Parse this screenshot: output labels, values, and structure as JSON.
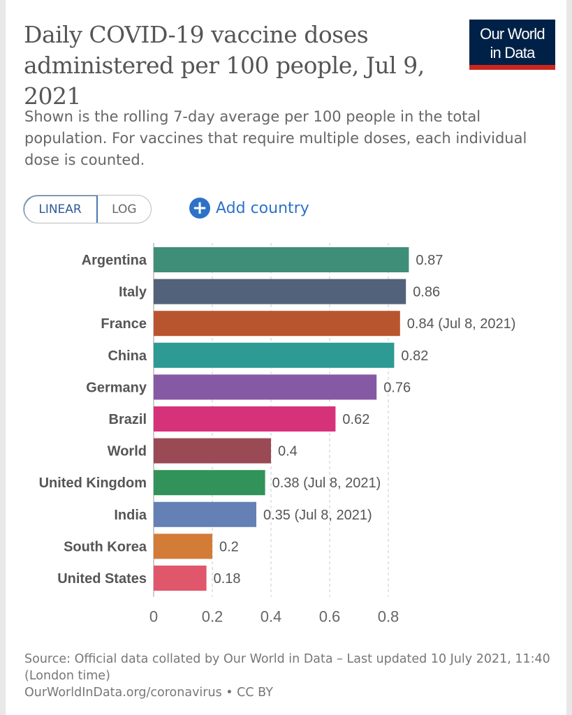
{
  "header": {
    "title": "Daily COVID-19 vaccine doses administered per 100 people, Jul 9, 2021",
    "subtitle": "Shown is the rolling 7-day average per 100 people in the total population. For vaccines that require multiple doses, each individual dose is counted."
  },
  "logo": {
    "line1": "Our World",
    "line2": "in Data"
  },
  "controls": {
    "linear_label": "LINEAR",
    "log_label": "LOG",
    "add_country_label": "Add country",
    "selected_scale": "linear"
  },
  "footer": {
    "source": "Source: Official data collated by Our World in Data – Last updated 10 July 2021, 11:40 (London time)",
    "link": "OurWorldInData.org/coronavirus • CC BY"
  },
  "chart_data": {
    "type": "bar",
    "orientation": "horizontal",
    "categories": [
      "Argentina",
      "Italy",
      "France",
      "China",
      "Germany",
      "Brazil",
      "World",
      "United Kingdom",
      "India",
      "South Korea",
      "United States"
    ],
    "values": [
      0.87,
      0.86,
      0.84,
      0.82,
      0.76,
      0.62,
      0.4,
      0.38,
      0.35,
      0.2,
      0.18
    ],
    "value_labels": [
      "0.87",
      "0.86",
      "0.84 (Jul 8, 2021)",
      "0.82",
      "0.76",
      "0.62",
      "0.4",
      "0.38 (Jul 8, 2021)",
      "0.35 (Jul 8, 2021)",
      "0.2",
      "0.18"
    ],
    "colors": [
      "#3f8e78",
      "#52627a",
      "#b9552e",
      "#2d9a94",
      "#8659a5",
      "#d6327a",
      "#9a4a54",
      "#31925a",
      "#6480b5",
      "#d37c38",
      "#e0566b"
    ],
    "xlim": [
      0,
      0.87
    ],
    "xticks": [
      0,
      0.2,
      0.4,
      0.6,
      0.8
    ],
    "xtick_labels": [
      "0",
      "0.2",
      "0.4",
      "0.6",
      "0.8"
    ],
    "grid": "vertical dashed"
  }
}
